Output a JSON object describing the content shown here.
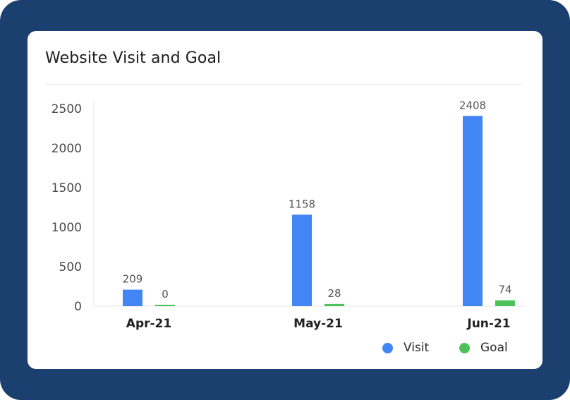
{
  "card": {
    "title": "Website Visit and Goal"
  },
  "legend": {
    "items": [
      {
        "label": "Visit",
        "color": "#4285f4"
      },
      {
        "label": "Goal",
        "color": "#4ec25a"
      }
    ]
  },
  "chart_data": {
    "type": "bar",
    "title": "Website Visit and Goal",
    "xlabel": "",
    "ylabel": "",
    "categories": [
      "Apr-21",
      "May-21",
      "Jun-21"
    ],
    "series": [
      {
        "name": "Visit",
        "color": "#4285f4",
        "values": [
          209,
          1158,
          2408
        ]
      },
      {
        "name": "Goal",
        "color": "#4ec25a",
        "values": [
          0,
          28,
          74
        ]
      }
    ],
    "ylim": [
      0,
      2500
    ],
    "yticks": [
      0,
      500,
      1000,
      1500,
      2000,
      2500
    ],
    "grid": false,
    "legend_position": "bottom-right",
    "data_labels": true
  }
}
